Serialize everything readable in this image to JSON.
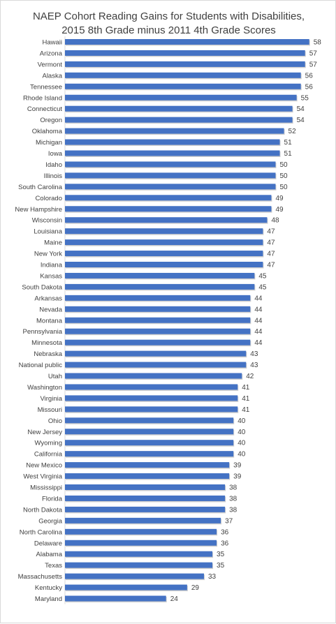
{
  "chart_data": {
    "type": "bar",
    "orientation": "horizontal",
    "title_lines": [
      "NAEP Cohort  Reading Gains for Students with Disabilities,",
      "2015 8th Grade minus 2011 4th Grade Scores"
    ],
    "categories": [
      "Hawaii",
      "Arizona",
      "Vermont",
      "Alaska",
      "Tennessee",
      "Rhode Island",
      "Connecticut",
      "Oregon",
      "Oklahoma",
      "Michigan",
      "Iowa",
      "Idaho",
      "Illinois",
      "South Carolina",
      "Colorado",
      "New Hampshire",
      "Wisconsin",
      "Louisiana",
      "Maine",
      "New York",
      "Indiana",
      "Kansas",
      "South Dakota",
      "Arkansas",
      "Nevada",
      "Montana",
      "Pennsylvania",
      "Minnesota",
      "Nebraska",
      "National public",
      "Utah",
      "Washington",
      "Virginia",
      "Missouri",
      "Ohio",
      "New Jersey",
      "Wyoming",
      "California",
      "New Mexico",
      "West Virginia",
      "Mississippi",
      "Florida",
      "North Dakota",
      "Georgia",
      "North Carolina",
      "Delaware",
      "Alabama",
      "Texas",
      "Massachusetts",
      "Kentucky",
      "Maryland"
    ],
    "values": [
      58,
      57,
      57,
      56,
      56,
      55,
      54,
      54,
      52,
      51,
      51,
      50,
      50,
      50,
      49,
      49,
      48,
      47,
      47,
      47,
      47,
      45,
      45,
      44,
      44,
      44,
      44,
      44,
      43,
      43,
      42,
      41,
      41,
      41,
      40,
      40,
      40,
      40,
      39,
      39,
      38,
      38,
      38,
      37,
      36,
      36,
      35,
      35,
      33,
      29,
      24
    ],
    "data_labels": true,
    "legend": "none",
    "grid": false,
    "bar_color": "#4472c4"
  }
}
